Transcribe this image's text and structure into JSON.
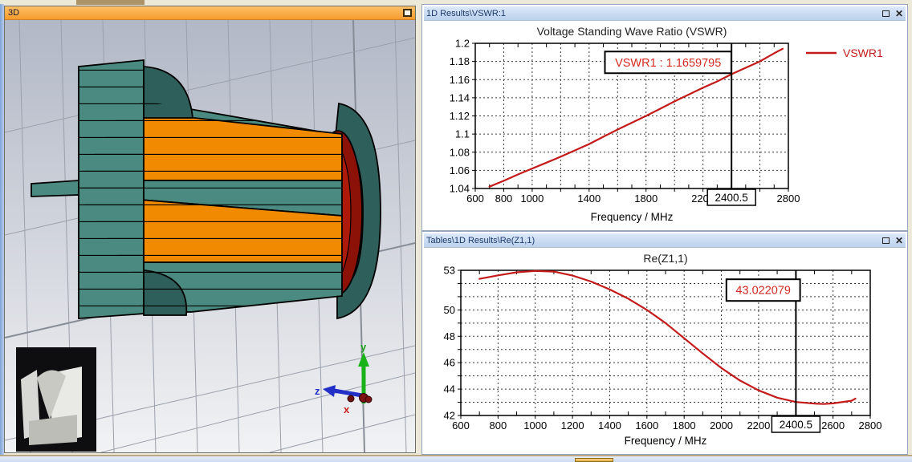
{
  "window_controls": {
    "close_glyph": "✕"
  },
  "panel_3d": {
    "title": "3D",
    "axes": {
      "x": "x",
      "y": "y",
      "z": "z"
    }
  },
  "panel_vswr": {
    "title": "1D Results\\VSWR:1"
  },
  "panel_re": {
    "title": "Tables\\1D Results\\Re(Z1,1)"
  },
  "colors": {
    "workspace": "#ece9d8",
    "titlebar_orange_1": "#fdc068",
    "titlebar_orange_2": "#f79b2c",
    "titlebar_blue_1": "#dce9fa",
    "titlebar_blue_2": "#bcd1ec",
    "title_text": "#1b3a6b",
    "teal": "#4a8a80",
    "teal_dark": "#2e5f5a",
    "orange": "#f28a00",
    "red_ring": "#8c1207",
    "red_ring_bright": "#ad1a0a",
    "curve": "#c41a1a",
    "annotation": "#d42a20",
    "grid_3d": "#9aa0ab",
    "bg3d_top": "#b2b8c6",
    "bg3d_bottom": "#f1f2f4"
  },
  "chart_data": [
    {
      "type": "line",
      "title": "Voltage Standing Wave Ratio (VSWR)",
      "xlabel": "Frequency / MHz",
      "ylabel": "",
      "xlim": [
        600,
        2800
      ],
      "ylim": [
        1.04,
        1.2
      ],
      "grid": true,
      "x_major_step": 200,
      "x_minor_step": 100,
      "xticks": [
        [
          600,
          "600"
        ],
        [
          800,
          "800"
        ],
        [
          1000,
          "1000"
        ],
        [
          1400,
          "1400"
        ],
        [
          1800,
          "1800"
        ],
        [
          2200,
          "2200"
        ],
        [
          2800,
          "2800"
        ]
      ],
      "yticks": [
        [
          1.04,
          "1.04"
        ],
        [
          1.06,
          "1.06"
        ],
        [
          1.08,
          "1.08"
        ],
        [
          1.1,
          "1.1"
        ],
        [
          1.12,
          "1.12"
        ],
        [
          1.14,
          "1.14"
        ],
        [
          1.16,
          "1.16"
        ],
        [
          1.18,
          "1.18"
        ],
        [
          1.2,
          "1.2"
        ]
      ],
      "ygrid": [
        1.06,
        1.08,
        1.1,
        1.12,
        1.14,
        1.16,
        1.18
      ],
      "ytick_marks": [
        1.04,
        1.06,
        1.08,
        1.1,
        1.12,
        1.14,
        1.16,
        1.18,
        1.2
      ],
      "legend": {
        "position": "right",
        "entries": [
          {
            "label": "VSWR1",
            "color": "#c41a1a"
          }
        ]
      },
      "marker": {
        "x": 2400.5,
        "label": "2400.5"
      },
      "annotation": {
        "text": "VSWR1 : 1.1659795",
        "x": 1955,
        "y": 1.179
      },
      "series": [
        {
          "name": "VSWR1",
          "color": "#c41a1a",
          "points": [
            [
              700,
              1.042
            ],
            [
              800,
              1.0485
            ],
            [
              900,
              1.0555
            ],
            [
              1000,
              1.062
            ],
            [
              1100,
              1.0685
            ],
            [
              1200,
              1.075
            ],
            [
              1300,
              1.082
            ],
            [
              1400,
              1.089
            ],
            [
              1500,
              1.097
            ],
            [
              1600,
              1.105
            ],
            [
              1700,
              1.1125
            ],
            [
              1800,
              1.12
            ],
            [
              1900,
              1.128
            ],
            [
              2000,
              1.136
            ],
            [
              2100,
              1.1435
            ],
            [
              2200,
              1.151
            ],
            [
              2300,
              1.158
            ],
            [
              2400.5,
              1.1659795
            ],
            [
              2500,
              1.173
            ],
            [
              2600,
              1.18
            ],
            [
              2700,
              1.189
            ],
            [
              2760,
              1.194
            ]
          ]
        }
      ],
      "layout": {
        "margins": {
          "l": 64,
          "r": 146,
          "t": 28,
          "b": 50
        }
      }
    },
    {
      "type": "line",
      "title": "Re(Z1,1)",
      "xlabel": "Frequency / MHz",
      "ylabel": "",
      "xlim": [
        600,
        2800
      ],
      "ylim": [
        42,
        53
      ],
      "grid": true,
      "x_major_step": 200,
      "x_minor_step": 100,
      "xticks": [
        [
          600,
          "600"
        ],
        [
          800,
          "800"
        ],
        [
          1000,
          "1000"
        ],
        [
          1200,
          "1200"
        ],
        [
          1400,
          "1400"
        ],
        [
          1600,
          "1600"
        ],
        [
          1800,
          "1800"
        ],
        [
          2000,
          "2000"
        ],
        [
          2200,
          "2200"
        ],
        [
          2600,
          "2600"
        ],
        [
          2800,
          "2800"
        ]
      ],
      "yticks": [
        [
          42,
          "42"
        ],
        [
          44,
          "44"
        ],
        [
          46,
          "46"
        ],
        [
          48,
          "48"
        ],
        [
          50,
          "50"
        ],
        [
          53,
          "53"
        ]
      ],
      "ygrid": [
        43,
        44,
        45,
        46,
        47,
        48,
        49,
        50,
        51,
        52
      ],
      "ytick_marks": [
        42,
        43,
        44,
        45,
        46,
        47,
        48,
        49,
        50,
        51,
        52,
        53
      ],
      "legend": null,
      "marker": {
        "x": 2400.5,
        "label": "2400.5"
      },
      "annotation": {
        "text": "43.022079",
        "x": 2225,
        "y": 51.5
      },
      "series": [
        {
          "name": "Re(Z1,1)",
          "color": "#c41a1a",
          "points": [
            [
              700,
              52.35
            ],
            [
              800,
              52.62
            ],
            [
              900,
              52.85
            ],
            [
              1000,
              52.95
            ],
            [
              1100,
              52.9
            ],
            [
              1200,
              52.6
            ],
            [
              1300,
              52.15
            ],
            [
              1400,
              51.55
            ],
            [
              1500,
              50.85
            ],
            [
              1600,
              50.0
            ],
            [
              1700,
              49.0
            ],
            [
              1800,
              47.85
            ],
            [
              1900,
              46.7
            ],
            [
              2000,
              45.6
            ],
            [
              2100,
              44.65
            ],
            [
              2200,
              43.9
            ],
            [
              2300,
              43.35
            ],
            [
              2400.5,
              43.022079
            ],
            [
              2500,
              42.9
            ],
            [
              2550,
              42.87
            ],
            [
              2600,
              42.92
            ],
            [
              2700,
              43.12
            ],
            [
              2720,
              43.28
            ]
          ]
        }
      ],
      "layout": {
        "margins": {
          "l": 46,
          "r": 44,
          "t": 28,
          "b": 46
        }
      }
    }
  ]
}
